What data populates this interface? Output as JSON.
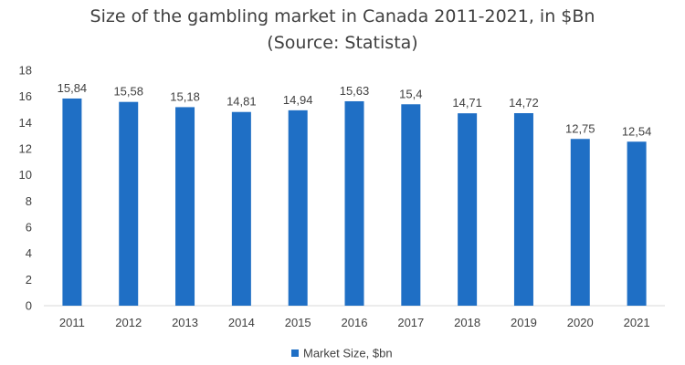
{
  "chart_data": {
    "type": "bar",
    "title": "Size of the gambling market in Canada 2011-2021, in $Bn",
    "subtitle": "(Source: Statista)",
    "categories": [
      "2011",
      "2012",
      "2013",
      "2014",
      "2015",
      "2016",
      "2017",
      "2018",
      "2019",
      "2020",
      "2021"
    ],
    "series": [
      {
        "name": "Market Size, $bn",
        "values": [
          15.84,
          15.58,
          15.18,
          14.81,
          14.94,
          15.63,
          15.4,
          14.71,
          14.72,
          12.75,
          12.54
        ],
        "labels": [
          "15,84",
          "15,58",
          "15,18",
          "14,81",
          "14,94",
          "15,63",
          "15,4",
          "14,71",
          "14,72",
          "12,75",
          "12,54"
        ],
        "color": "#1f6fc5"
      }
    ],
    "ylim": [
      0,
      18
    ],
    "yticks": [
      0,
      2,
      4,
      6,
      8,
      10,
      12,
      14,
      16,
      18
    ],
    "xlabel": "",
    "ylabel": "",
    "grid": false,
    "legend_position": "bottom"
  }
}
